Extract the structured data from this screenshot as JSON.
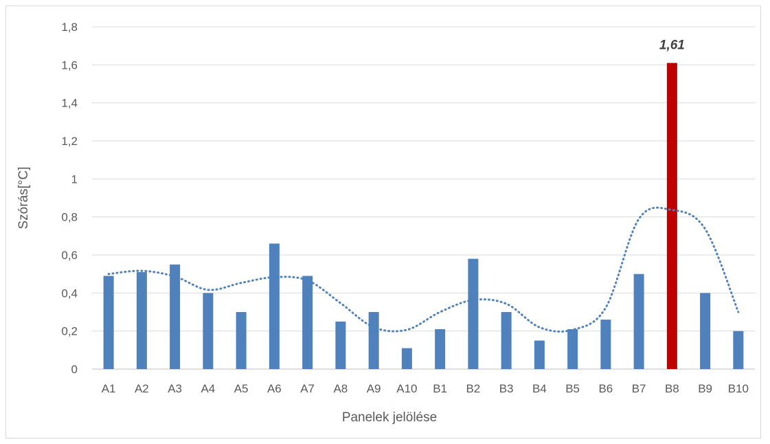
{
  "chart_data": {
    "type": "bar",
    "title": "",
    "xlabel": "Panelek jelölése",
    "ylabel": "Szórás[°C]",
    "categories": [
      "A1",
      "A2",
      "A3",
      "A4",
      "A5",
      "A6",
      "A7",
      "A8",
      "A9",
      "A10",
      "B1",
      "B2",
      "B3",
      "B4",
      "B5",
      "B6",
      "B7",
      "B8",
      "B9",
      "B10"
    ],
    "values": [
      0.49,
      0.51,
      0.55,
      0.4,
      0.3,
      0.66,
      0.49,
      0.25,
      0.3,
      0.11,
      0.21,
      0.58,
      0.3,
      0.15,
      0.21,
      0.26,
      0.5,
      1.61,
      0.4,
      0.2
    ],
    "ylim": [
      0,
      1.8
    ],
    "yticks": [
      "0",
      "0,2",
      "0,4",
      "0,6",
      "0,8",
      "1",
      "1,2",
      "1,4",
      "1,6",
      "1,8"
    ],
    "grid": true,
    "legend": "none",
    "highlight": {
      "category": "B8",
      "label": "1,61",
      "color": "#c00000"
    },
    "bar_color": "#4f81bd",
    "trendline": {
      "type": "polynomial",
      "style": "dotted",
      "color": "#4f81bd"
    }
  }
}
